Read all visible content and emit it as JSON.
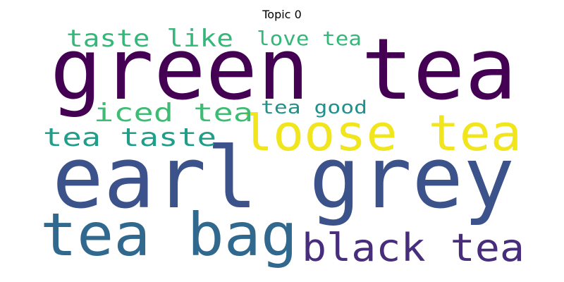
{
  "title": "Topic 0",
  "words": [
    {
      "text": "green tea",
      "color": "#440154"
    },
    {
      "text": "earl grey",
      "color": "#3b528b"
    },
    {
      "text": "loose tea",
      "color": "#f1e51d"
    },
    {
      "text": "tea bag",
      "color": "#31688e"
    },
    {
      "text": "black tea",
      "color": "#472d7b"
    },
    {
      "text": "taste like",
      "color": "#35b779"
    },
    {
      "text": "love tea",
      "color": "#35b779"
    },
    {
      "text": "iced tea",
      "color": "#3fbc73"
    },
    {
      "text": "tea good",
      "color": "#21918c"
    },
    {
      "text": "tea taste",
      "color": "#1f9e89"
    }
  ]
}
